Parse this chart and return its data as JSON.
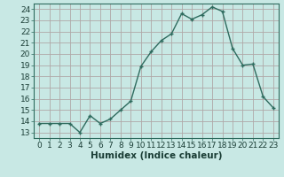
{
  "x": [
    0,
    1,
    2,
    3,
    4,
    5,
    6,
    7,
    8,
    9,
    10,
    11,
    12,
    13,
    14,
    15,
    16,
    17,
    18,
    19,
    20,
    21,
    22,
    23
  ],
  "y": [
    13.8,
    13.8,
    13.8,
    13.8,
    13.0,
    14.5,
    13.8,
    14.2,
    15.0,
    15.8,
    18.9,
    20.2,
    21.2,
    21.8,
    23.6,
    23.1,
    23.5,
    24.2,
    23.8,
    20.5,
    19.0,
    19.1,
    16.2,
    15.2
  ],
  "line_color": "#2e6b5e",
  "marker_color": "#2e6b5e",
  "bg_color": "#c8e8e4",
  "grid_color": "#b0a8a8",
  "xlabel": "Humidex (Indice chaleur)",
  "xlabel_fontsize": 7.5,
  "xlim": [
    -0.5,
    23.5
  ],
  "ylim": [
    12.5,
    24.5
  ],
  "yticks": [
    13,
    14,
    15,
    16,
    17,
    18,
    19,
    20,
    21,
    22,
    23,
    24
  ],
  "xticks": [
    0,
    1,
    2,
    3,
    4,
    5,
    6,
    7,
    8,
    9,
    10,
    11,
    12,
    13,
    14,
    15,
    16,
    17,
    18,
    19,
    20,
    21,
    22,
    23
  ],
  "tick_label_fontsize": 6.5,
  "line_width": 1.0,
  "marker_size": 2.5,
  "spine_color": "#2e6b5e",
  "tick_color": "#2e6b5e"
}
